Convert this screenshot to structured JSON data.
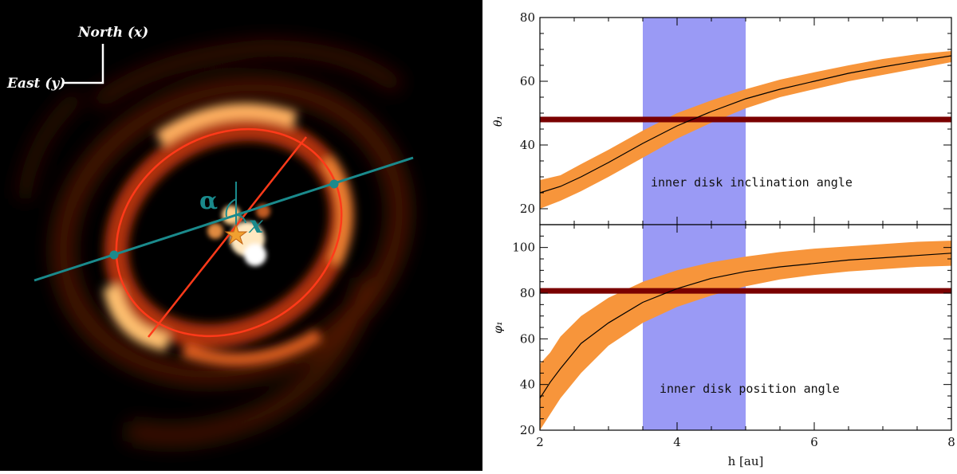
{
  "image": {
    "compass_north": "North (x)",
    "compass_east": "East (y)",
    "alpha_symbol": "α",
    "x_symbol": "x"
  },
  "colors": {
    "axis": "#000000",
    "shaded_band": "#9a9af5",
    "uncertainty_band": "#f7953b",
    "reference_line": "#7a0000",
    "model_curve": "#000000",
    "ellipse": "#ff3a1a",
    "major_axis_line": "#1a8a8c"
  },
  "chart_data": [
    {
      "type": "line",
      "title": "",
      "xlabel": "",
      "ylabel": "θ₁",
      "xlim": [
        2,
        8
      ],
      "ylim": [
        15,
        80
      ],
      "y_ticks": [
        20,
        40,
        60,
        80
      ],
      "x_ticks": [
        2,
        4,
        6,
        8
      ],
      "shaded_x_range": [
        3.5,
        5.0
      ],
      "reference_line_y": 48,
      "annotation": "inner disk inclination angle",
      "series": [
        {
          "x": [
            2.0,
            2.3,
            2.6,
            3.0,
            3.5,
            4.0,
            4.5,
            5.0,
            5.5,
            6.0,
            6.5,
            7.0,
            7.5,
            8.0
          ],
          "y": [
            25,
            27,
            30,
            34.5,
            40.5,
            46,
            50.5,
            54.5,
            57.5,
            60,
            62.5,
            64.5,
            66.3,
            68
          ],
          "y_low": [
            20,
            22.5,
            25.5,
            30,
            36,
            42,
            47,
            51.5,
            55,
            57.5,
            60,
            62,
            64,
            66
          ],
          "y_high": [
            29,
            30.5,
            34,
            38.5,
            44.5,
            50,
            54,
            57.5,
            60.5,
            62.8,
            65,
            67,
            68.5,
            69.5
          ]
        }
      ]
    },
    {
      "type": "line",
      "title": "",
      "xlabel": "h [au]",
      "ylabel": "φ₁",
      "xlim": [
        2,
        8
      ],
      "ylim": [
        20,
        110
      ],
      "y_ticks": [
        20,
        40,
        60,
        80,
        100
      ],
      "x_ticks": [
        2,
        4,
        6,
        8
      ],
      "shaded_x_range": [
        3.5,
        5.0
      ],
      "reference_line_y": 81,
      "annotation": "inner disk position angle",
      "series": [
        {
          "x": [
            2.0,
            2.15,
            2.3,
            2.6,
            3.0,
            3.5,
            4.0,
            4.5,
            5.0,
            5.5,
            6.0,
            6.5,
            7.0,
            7.5,
            8.0
          ],
          "y": [
            34,
            41,
            47,
            58,
            67,
            76,
            82,
            86.5,
            89.5,
            91.5,
            93,
            94.5,
            95.5,
            96.5,
            97.5
          ],
          "y_low": [
            20,
            27,
            34,
            45,
            57,
            67,
            74,
            79,
            83,
            86,
            88,
            89.5,
            90.5,
            91.5,
            92
          ],
          "y_high": [
            49,
            54,
            61,
            70,
            78,
            85,
            90,
            93.5,
            96,
            98,
            99.5,
            100.5,
            101.5,
            102.5,
            103
          ]
        }
      ]
    }
  ]
}
